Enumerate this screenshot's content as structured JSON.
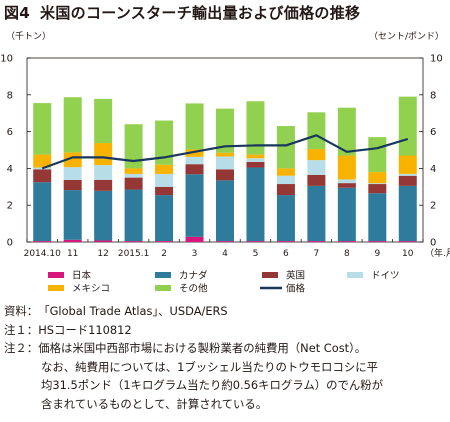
{
  "title": {
    "figure_no": "図4",
    "text": "米国のコーンスターチ輸出量および価格の推移"
  },
  "chart_data": {
    "type": "bar",
    "stacked": true,
    "categories": [
      "2014.10",
      "11",
      "12",
      "2015.1",
      "2",
      "3",
      "4",
      "5",
      "6",
      "7",
      "8",
      "9",
      "10"
    ],
    "x_unit": "（年.月）",
    "ylabel_left": "（千トン）",
    "ylabel_right": "（セント/ポンド）",
    "ylim": [
      0,
      10
    ],
    "y_ticks": [
      "0",
      "2",
      "4",
      "6",
      "8",
      "10"
    ],
    "grid": false,
    "legend_position": "bottom",
    "series": [
      {
        "name": "日本",
        "color": "#d6177b",
        "values": [
          0.05,
          0.12,
          0.08,
          0.05,
          0.05,
          0.28,
          0.05,
          0.05,
          0.05,
          0.05,
          0.05,
          0.05,
          0.05
        ]
      },
      {
        "name": "カナダ",
        "color": "#2e7b9b",
        "values": [
          3.2,
          2.7,
          2.7,
          2.8,
          2.5,
          3.4,
          3.3,
          4.0,
          2.5,
          3.0,
          2.9,
          2.6,
          3.0
        ]
      },
      {
        "name": "英国",
        "color": "#953735",
        "values": [
          0.7,
          0.55,
          0.6,
          0.65,
          0.45,
          0.55,
          0.6,
          0.3,
          0.6,
          0.6,
          0.25,
          0.5,
          0.55
        ]
      },
      {
        "name": "ドイツ",
        "color": "#b7dde8",
        "values": [
          0.1,
          0.7,
          0.8,
          0.2,
          0.7,
          0.4,
          0.7,
          0.2,
          0.45,
          0.8,
          0.2,
          0.05,
          0.1
        ]
      },
      {
        "name": "メキシコ",
        "color": "#f7b300",
        "values": [
          0.7,
          0.8,
          1.2,
          0.3,
          0.5,
          0.4,
          0.2,
          0.2,
          0.4,
          0.6,
          1.3,
          0.6,
          1.0
        ]
      },
      {
        "name": "その他",
        "color": "#92d050",
        "values": [
          2.8,
          3.0,
          2.4,
          2.4,
          2.4,
          2.5,
          2.4,
          2.9,
          2.3,
          2.0,
          2.6,
          1.9,
          3.2
        ]
      }
    ],
    "line": {
      "name": "価格",
      "color": "#17375e",
      "values": [
        4.0,
        4.6,
        4.6,
        4.4,
        4.6,
        4.9,
        5.2,
        5.25,
        5.25,
        5.8,
        4.9,
        5.1,
        5.6
      ]
    }
  },
  "notes": [
    {
      "label": "資料：",
      "text": "「Global Trade Atlas」、USDA/ERS"
    },
    {
      "label": "注１：",
      "text": "HSコード110812"
    },
    {
      "label": "注２：",
      "text": "価格は米国中西部市場における製粉業者の純費用（Net Cost）。"
    }
  ],
  "note_continuation": [
    "なお、純費用については、1ブッシェル当たりのトウモロコシに平",
    "均31.5ポンド（1キログラム当たり約0.56キログラム）のでん粉が",
    "含まれているものとして、計算されている。"
  ]
}
